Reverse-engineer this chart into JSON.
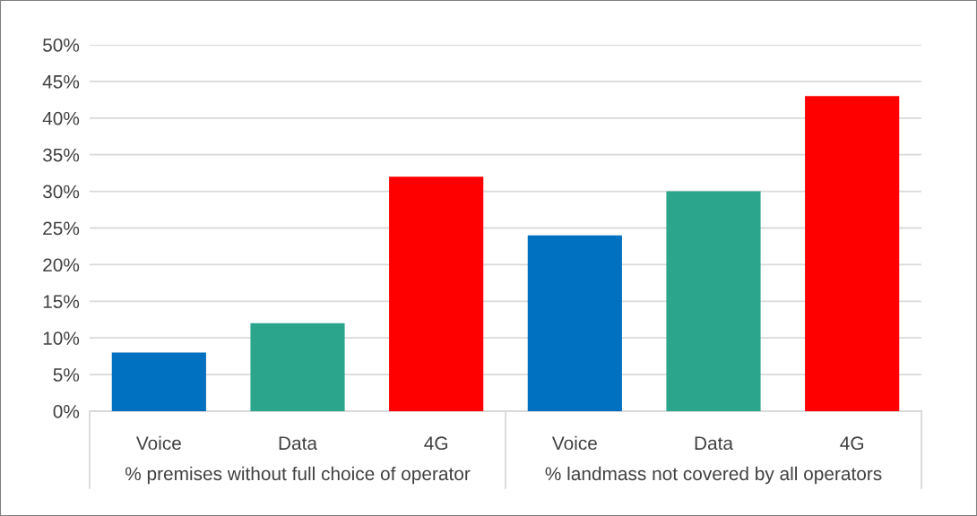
{
  "chart_data": {
    "type": "bar",
    "categories": [
      "Voice",
      "Data",
      "4G",
      "Voice",
      "Data",
      "4G"
    ],
    "values": [
      8,
      12,
      32,
      24,
      30,
      43
    ],
    "colors": [
      "#0070c0",
      "#2ca58d",
      "#ff0000",
      "#0070c0",
      "#2ca58d",
      "#ff0000"
    ],
    "ylim": [
      0,
      50
    ],
    "yticks": [
      {
        "value": 0,
        "label": "0%"
      },
      {
        "value": 5,
        "label": "5%"
      },
      {
        "value": 10,
        "label": "10%"
      },
      {
        "value": 15,
        "label": "15%"
      },
      {
        "value": 20,
        "label": "20%"
      },
      {
        "value": 25,
        "label": "25%"
      },
      {
        "value": 30,
        "label": "30%"
      },
      {
        "value": 35,
        "label": "35%"
      },
      {
        "value": 40,
        "label": "40%"
      },
      {
        "value": 45,
        "label": "45%"
      },
      {
        "value": 50,
        "label": "50%"
      }
    ],
    "grid": "y",
    "annotations": [
      "% premises without full choice of operator",
      "% landmass not covered by all operators"
    ]
  }
}
